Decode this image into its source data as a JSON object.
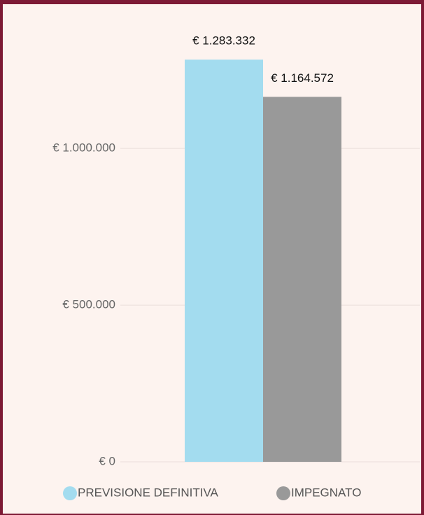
{
  "chart_data": {
    "type": "bar",
    "categories": [
      null
    ],
    "series": [
      {
        "name": "PREVISIONE DEFINITIVA",
        "color": "#a3dcef",
        "values": [
          1283332
        ],
        "value_labels": [
          "€ 1.283.332"
        ]
      },
      {
        "name": "IMPEGNATO",
        "color": "#999999",
        "values": [
          1164572
        ],
        "value_labels": [
          "€ 1.164.572"
        ]
      }
    ],
    "ylim": [
      0,
      1400000
    ],
    "yticks": [
      {
        "value": 0,
        "label": "€ 0"
      },
      {
        "value": 500000,
        "label": "€ 500.000"
      },
      {
        "value": 1000000,
        "label": "€ 1.000.000"
      }
    ],
    "grid": true
  }
}
